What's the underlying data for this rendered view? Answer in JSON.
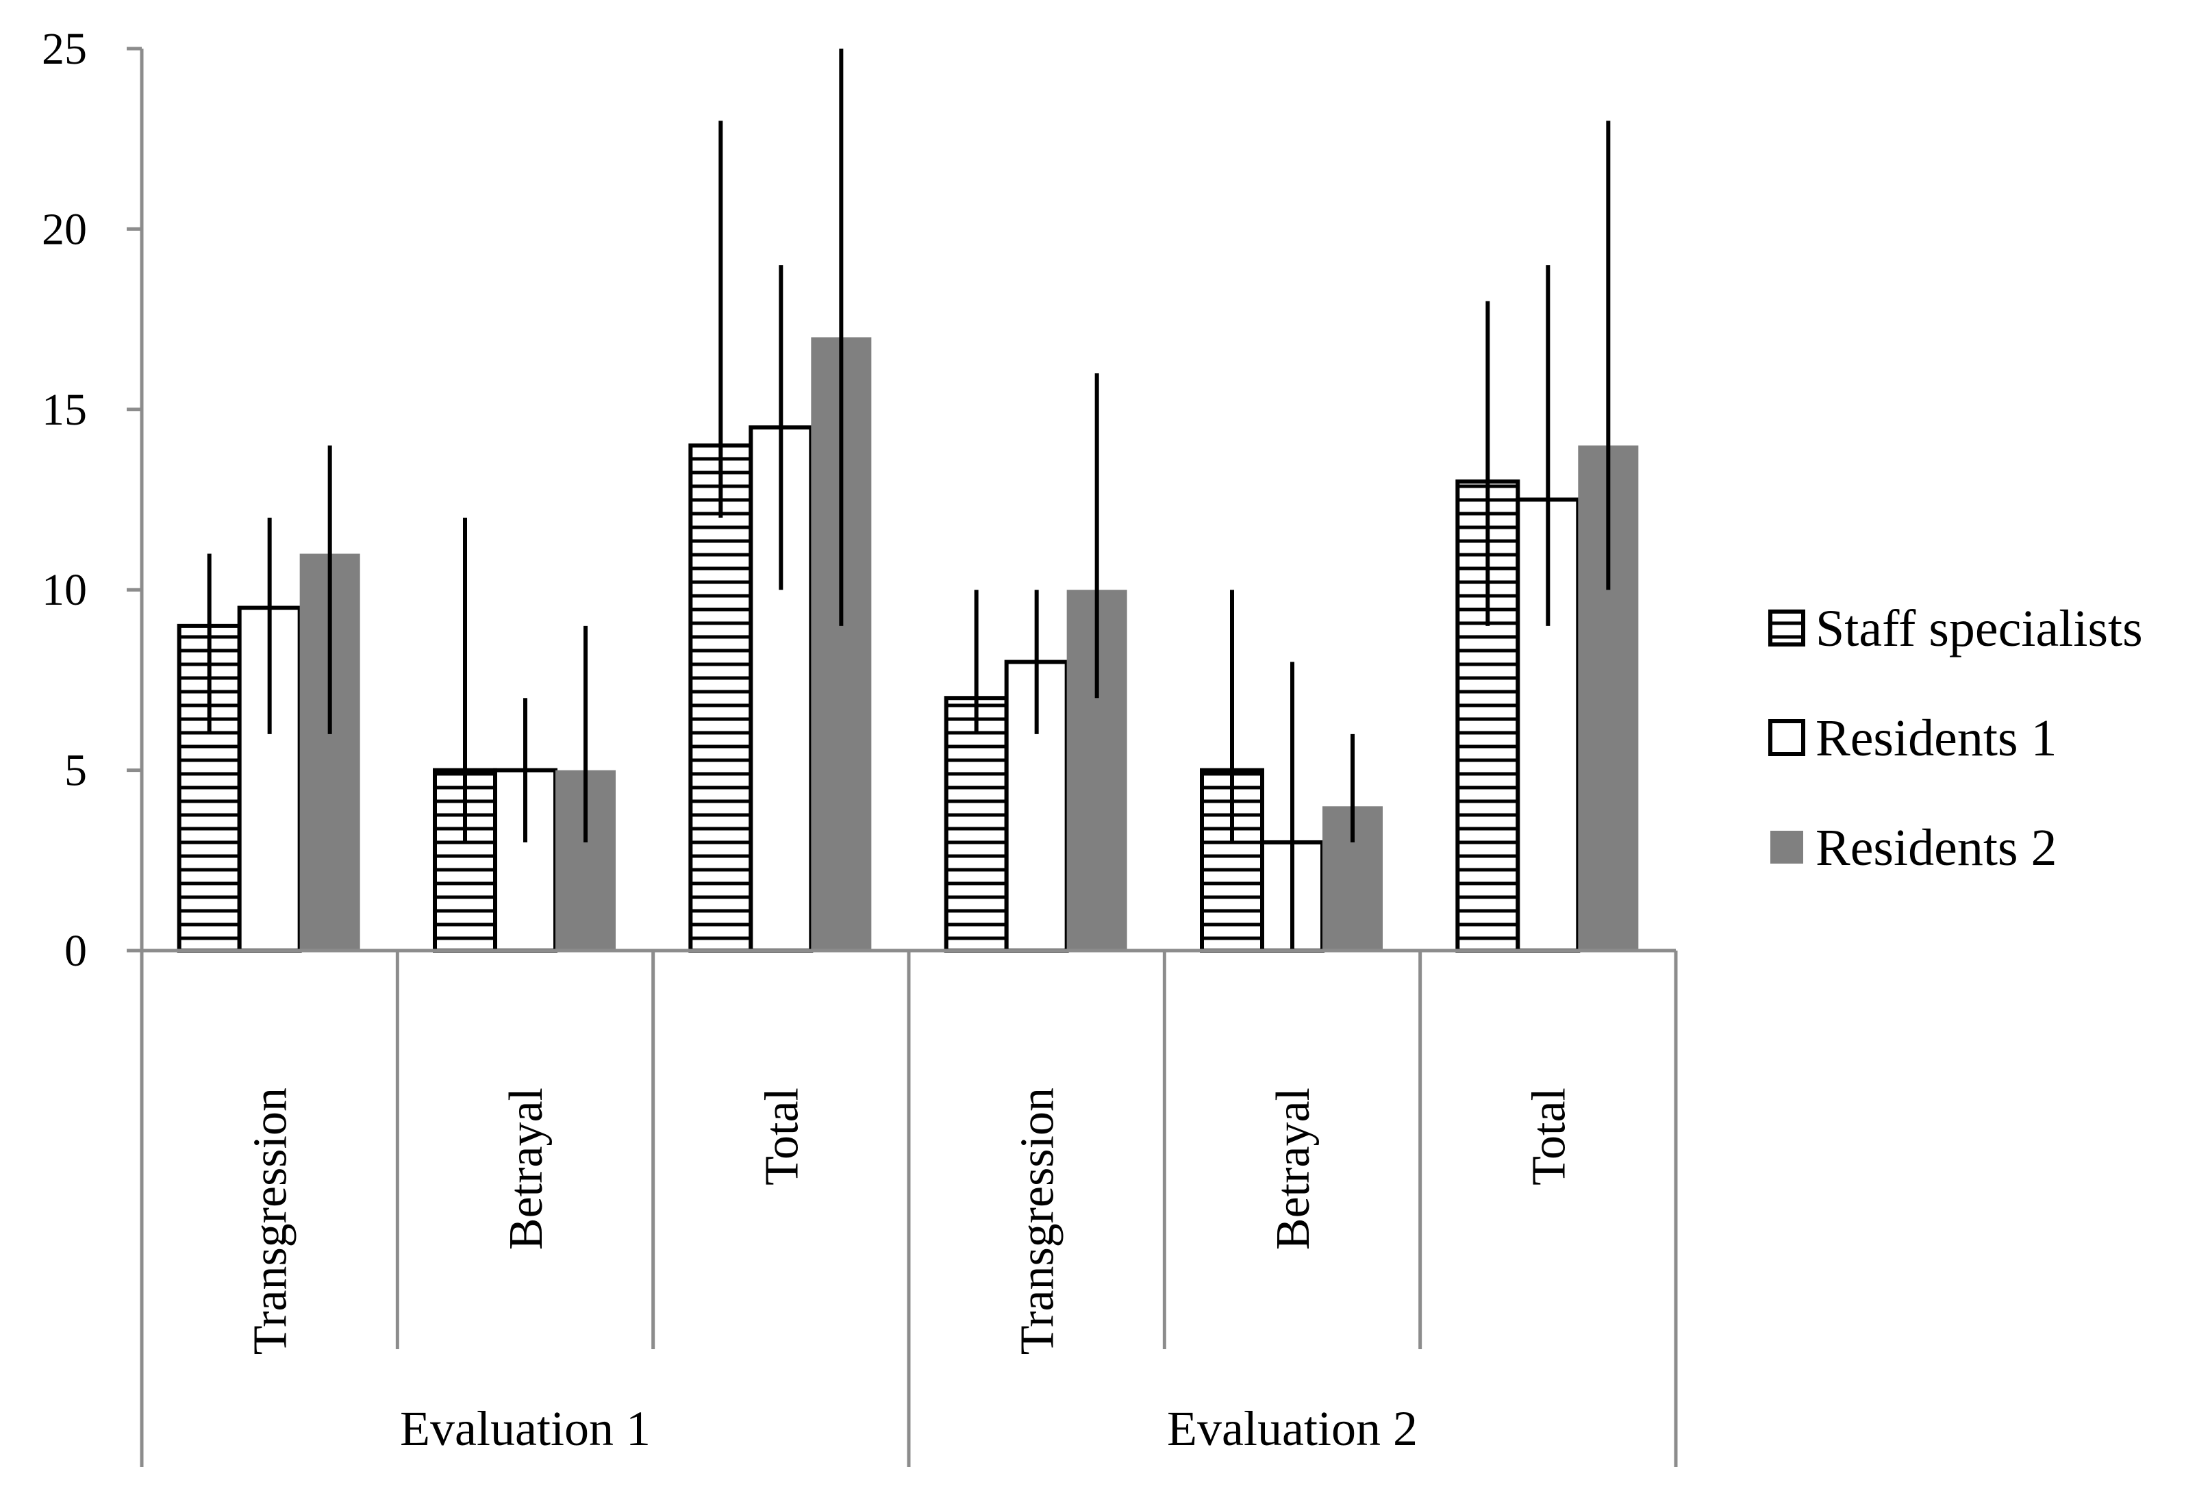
{
  "chart_data": {
    "type": "bar",
    "title": "",
    "xlabel": "",
    "ylabel": "",
    "ylim": [
      0,
      25
    ],
    "yticks": [
      0,
      5,
      10,
      15,
      20,
      25
    ],
    "grid": false,
    "legend_position": "right",
    "groups": [
      {
        "label": "Evaluation 1",
        "categories": [
          "Transgression",
          "Betrayal",
          "Total"
        ]
      },
      {
        "label": "Evaluation 2",
        "categories": [
          "Transgression",
          "Betrayal",
          "Total"
        ]
      }
    ],
    "series": [
      {
        "name": "Staff specialists",
        "style": "hatched",
        "values": [
          9,
          5,
          14,
          7,
          5,
          13
        ],
        "error_low": [
          6,
          3,
          12,
          6,
          3,
          9
        ],
        "error_high": [
          11,
          12,
          23,
          10,
          10,
          18
        ]
      },
      {
        "name": "Residents 1",
        "style": "white",
        "values": [
          9.5,
          5,
          14.5,
          8,
          3,
          12.5
        ],
        "error_low": [
          6,
          3,
          10,
          6,
          0,
          9
        ],
        "error_high": [
          12,
          7,
          19,
          10,
          8,
          19
        ]
      },
      {
        "name": "Residents 2",
        "style": "solid",
        "values": [
          11,
          5,
          17,
          10,
          4,
          14
        ],
        "error_low": [
          6,
          3,
          9,
          7,
          3,
          10
        ],
        "error_high": [
          14,
          9,
          25,
          16,
          6,
          23
        ]
      }
    ],
    "colors": {
      "axis": "#8c8c8c",
      "bar_edge": "#000000",
      "solid_fill": "#808080",
      "white_fill": "#ffffff",
      "error_bar": "#000000"
    }
  }
}
